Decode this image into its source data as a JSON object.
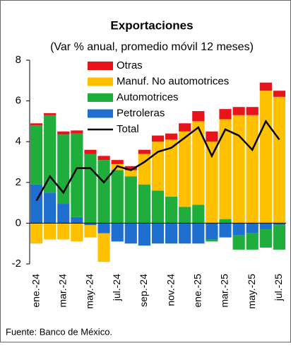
{
  "chart_data": {
    "type": "stacked_bar_line",
    "title": "Exportaciones",
    "subtitle": "(Var % anual, promedio móvil 12 meses)",
    "source": "Fuente: Banco de México.",
    "categories": [
      "ene.-24",
      null,
      "mar.-24",
      null,
      "may.-24",
      null,
      "jul.-24",
      null,
      "sep.-24",
      null,
      "nov.-24",
      null,
      "ene.-25",
      null,
      "mar.-25",
      null,
      "may.-25",
      null,
      "jul.-25"
    ],
    "series": [
      {
        "name": "Petroleras",
        "color": "#1f6fd1",
        "values": [
          1.9,
          1.5,
          0.95,
          0.3,
          -0.1,
          -0.5,
          -0.9,
          -1.0,
          -1.1,
          -1.0,
          -1.0,
          -1.0,
          -1.0,
          -0.8,
          -0.7,
          -0.6,
          -0.5,
          -0.3,
          -0.1
        ]
      },
      {
        "name": "Automotrices",
        "color": "#1fae3c",
        "values": [
          2.9,
          3.8,
          3.4,
          4.1,
          3.4,
          3.1,
          2.6,
          2.3,
          1.9,
          1.6,
          1.3,
          0.8,
          0.9,
          -0.1,
          0.2,
          -0.7,
          -0.8,
          -0.9,
          -1.2
        ]
      },
      {
        "name": "Manuf. No automotrices",
        "color": "#ffc000",
        "values": [
          -1.0,
          -0.8,
          -0.8,
          -0.9,
          -0.6,
          -1.4,
          0.3,
          0.3,
          1.5,
          2.4,
          2.8,
          3.7,
          4.1,
          4.0,
          4.9,
          5.3,
          5.3,
          6.5,
          6.2
        ]
      },
      {
        "name": "Otras",
        "color": "#e8141b",
        "values": [
          0.1,
          0.1,
          0.15,
          0.15,
          0.2,
          0.2,
          0.2,
          0.2,
          0.2,
          0.3,
          0.3,
          0.4,
          0.5,
          0.5,
          0.5,
          0.4,
          0.4,
          0.4,
          0.3
        ]
      }
    ],
    "line": {
      "name": "Total",
      "color": "#000000",
      "values": [
        1.1,
        2.3,
        1.5,
        2.7,
        2.7,
        2.0,
        2.8,
        2.6,
        3.0,
        3.5,
        3.7,
        4.2,
        4.7,
        3.3,
        4.6,
        4.3,
        3.6,
        5.0,
        4.1
      ]
    },
    "ylim": [
      -2,
      8
    ],
    "yticks": [
      -2,
      0,
      2,
      4,
      6,
      8
    ]
  }
}
